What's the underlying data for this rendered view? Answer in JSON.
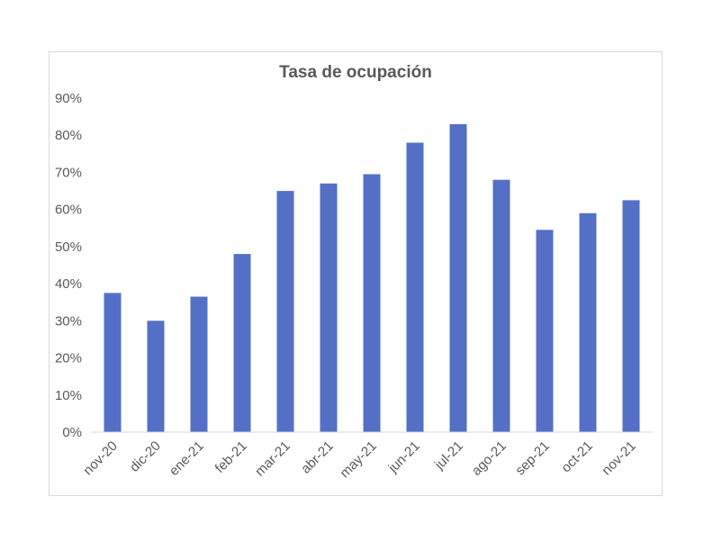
{
  "chart_data": {
    "type": "bar",
    "title": "Tasa de ocupación",
    "xlabel": "",
    "ylabel": "",
    "categories": [
      "nov-20",
      "dic-20",
      "ene-21",
      "feb-21",
      "mar-21",
      "abr-21",
      "may-21",
      "jun-21",
      "jul-21",
      "ago-21",
      "sep-21",
      "oct-21",
      "nov-21"
    ],
    "values": [
      37.5,
      30,
      36.5,
      48,
      65,
      67,
      69.5,
      78,
      83,
      68,
      54.5,
      59,
      62.5
    ],
    "ylim": [
      0,
      90
    ],
    "yticks": [
      "0%",
      "10%",
      "20%",
      "30%",
      "40%",
      "50%",
      "60%",
      "70%",
      "80%",
      "90%"
    ],
    "grid": false,
    "legend": "none",
    "bar_color": "#5470C6"
  }
}
